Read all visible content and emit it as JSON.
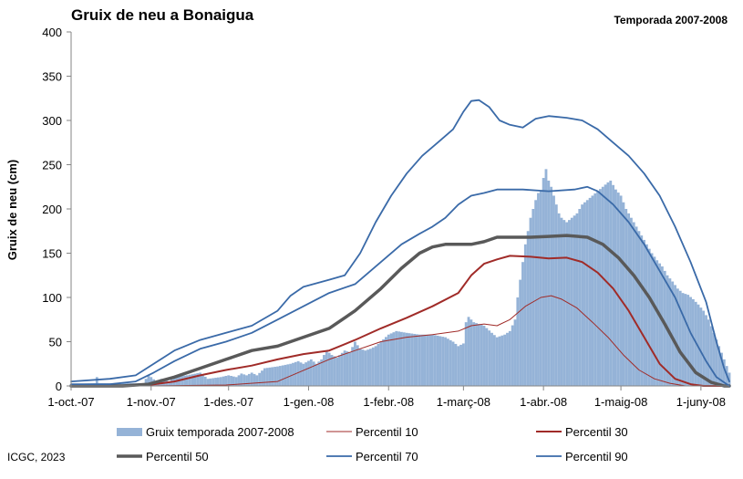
{
  "chart_data": {
    "type": "area",
    "title": "Gruix de neu a Bonaigua",
    "subtitle": "Temporada 2007-2008",
    "ylabel": "Gruix de neu (cm)",
    "xlabel": "",
    "ylim": [
      0,
      400
    ],
    "yticks": [
      "0",
      "50",
      "100",
      "150",
      "200",
      "250",
      "300",
      "350",
      "400"
    ],
    "xlim": [
      0,
      255
    ],
    "xticks": [
      {
        "label": "1-oct.-07",
        "day": 0
      },
      {
        "label": "1-nov.-07",
        "day": 31
      },
      {
        "label": "1-des.-07",
        "day": 61
      },
      {
        "label": "1-gen.-08",
        "day": 92
      },
      {
        "label": "1-febr.-08",
        "day": 123
      },
      {
        "label": "1-març-08",
        "day": 152
      },
      {
        "label": "1-abr.-08",
        "day": 183
      },
      {
        "label": "1-maig-08",
        "day": 213
      },
      {
        "label": "1-juny-08",
        "day": 244
      }
    ],
    "grid": false,
    "legend_position": "bottom",
    "series": [
      {
        "name": "Gruix temporada 2007-2008",
        "kind": "bar",
        "color": "#95b3d7",
        "points": [
          [
            0,
            2
          ],
          [
            9,
            3
          ],
          [
            10,
            10
          ],
          [
            11,
            3
          ],
          [
            20,
            3
          ],
          [
            28,
            3
          ],
          [
            29,
            8
          ],
          [
            30,
            12
          ],
          [
            31,
            10
          ],
          [
            33,
            5
          ],
          [
            35,
            8
          ],
          [
            38,
            5
          ],
          [
            40,
            10
          ],
          [
            45,
            12
          ],
          [
            50,
            15
          ],
          [
            53,
            8
          ],
          [
            58,
            10
          ],
          [
            61,
            12
          ],
          [
            64,
            10
          ],
          [
            66,
            14
          ],
          [
            68,
            12
          ],
          [
            70,
            15
          ],
          [
            72,
            12
          ],
          [
            75,
            20
          ],
          [
            80,
            22
          ],
          [
            85,
            25
          ],
          [
            88,
            28
          ],
          [
            90,
            25
          ],
          [
            93,
            30
          ],
          [
            95,
            25
          ],
          [
            97,
            30
          ],
          [
            99,
            40
          ],
          [
            101,
            35
          ],
          [
            103,
            32
          ],
          [
            106,
            40
          ],
          [
            108,
            38
          ],
          [
            110,
            50
          ],
          [
            112,
            42
          ],
          [
            114,
            40
          ],
          [
            116,
            42
          ],
          [
            118,
            45
          ],
          [
            120,
            50
          ],
          [
            123,
            58
          ],
          [
            126,
            62
          ],
          [
            130,
            60
          ],
          [
            135,
            58
          ],
          [
            140,
            58
          ],
          [
            145,
            55
          ],
          [
            148,
            50
          ],
          [
            150,
            45
          ],
          [
            152,
            48
          ],
          [
            153,
            72
          ],
          [
            154,
            78
          ],
          [
            156,
            72
          ],
          [
            158,
            70
          ],
          [
            160,
            68
          ],
          [
            163,
            60
          ],
          [
            165,
            55
          ],
          [
            168,
            58
          ],
          [
            170,
            62
          ],
          [
            172,
            75
          ],
          [
            173,
            100
          ],
          [
            174,
            120
          ],
          [
            175,
            140
          ],
          [
            176,
            160
          ],
          [
            177,
            175
          ],
          [
            178,
            190
          ],
          [
            179,
            200
          ],
          [
            180,
            210
          ],
          [
            181,
            218
          ],
          [
            182,
            220
          ],
          [
            183,
            235
          ],
          [
            184,
            245
          ],
          [
            185,
            232
          ],
          [
            186,
            225
          ],
          [
            187,
            215
          ],
          [
            188,
            205
          ],
          [
            189,
            195
          ],
          [
            190,
            190
          ],
          [
            192,
            185
          ],
          [
            194,
            190
          ],
          [
            196,
            195
          ],
          [
            198,
            205
          ],
          [
            200,
            210
          ],
          [
            202,
            215
          ],
          [
            204,
            220
          ],
          [
            206,
            225
          ],
          [
            208,
            230
          ],
          [
            209,
            232
          ],
          [
            211,
            222
          ],
          [
            213,
            215
          ],
          [
            215,
            200
          ],
          [
            217,
            190
          ],
          [
            219,
            180
          ],
          [
            221,
            170
          ],
          [
            223,
            160
          ],
          [
            225,
            150
          ],
          [
            227,
            142
          ],
          [
            229,
            135
          ],
          [
            231,
            125
          ],
          [
            233,
            118
          ],
          [
            235,
            110
          ],
          [
            237,
            105
          ],
          [
            239,
            103
          ],
          [
            241,
            98
          ],
          [
            243,
            92
          ],
          [
            245,
            85
          ],
          [
            247,
            75
          ],
          [
            249,
            60
          ],
          [
            251,
            45
          ],
          [
            253,
            30
          ],
          [
            255,
            15
          ]
        ]
      },
      {
        "name": "Percentil 10",
        "kind": "line",
        "color": "#a02b28",
        "width": 1,
        "points": [
          [
            0,
            0
          ],
          [
            30,
            0
          ],
          [
            60,
            1
          ],
          [
            80,
            5
          ],
          [
            92,
            20
          ],
          [
            100,
            30
          ],
          [
            110,
            40
          ],
          [
            120,
            50
          ],
          [
            130,
            55
          ],
          [
            140,
            58
          ],
          [
            150,
            62
          ],
          [
            155,
            68
          ],
          [
            160,
            70
          ],
          [
            165,
            68
          ],
          [
            170,
            75
          ],
          [
            176,
            90
          ],
          [
            182,
            100
          ],
          [
            186,
            102
          ],
          [
            190,
            98
          ],
          [
            196,
            88
          ],
          [
            202,
            72
          ],
          [
            208,
            55
          ],
          [
            214,
            35
          ],
          [
            220,
            18
          ],
          [
            226,
            8
          ],
          [
            232,
            3
          ],
          [
            238,
            0
          ],
          [
            255,
            0
          ]
        ]
      },
      {
        "name": "Percentil 30",
        "kind": "line",
        "color": "#a02b28",
        "width": 2,
        "points": [
          [
            0,
            0
          ],
          [
            20,
            0
          ],
          [
            30,
            1
          ],
          [
            40,
            5
          ],
          [
            50,
            12
          ],
          [
            60,
            18
          ],
          [
            70,
            23
          ],
          [
            80,
            30
          ],
          [
            90,
            36
          ],
          [
            100,
            40
          ],
          [
            110,
            52
          ],
          [
            120,
            65
          ],
          [
            130,
            77
          ],
          [
            140,
            90
          ],
          [
            150,
            105
          ],
          [
            155,
            125
          ],
          [
            160,
            138
          ],
          [
            165,
            143
          ],
          [
            170,
            147
          ],
          [
            178,
            146
          ],
          [
            185,
            144
          ],
          [
            192,
            145
          ],
          [
            198,
            140
          ],
          [
            204,
            128
          ],
          [
            210,
            110
          ],
          [
            216,
            85
          ],
          [
            222,
            55
          ],
          [
            228,
            25
          ],
          [
            234,
            8
          ],
          [
            240,
            2
          ],
          [
            245,
            0
          ],
          [
            255,
            0
          ]
        ]
      },
      {
        "name": "Percentil 50",
        "kind": "line",
        "color": "#595959",
        "width": 3.5,
        "points": [
          [
            0,
            0
          ],
          [
            20,
            0
          ],
          [
            30,
            2
          ],
          [
            40,
            10
          ],
          [
            50,
            20
          ],
          [
            60,
            30
          ],
          [
            70,
            40
          ],
          [
            80,
            45
          ],
          [
            90,
            55
          ],
          [
            100,
            65
          ],
          [
            110,
            85
          ],
          [
            120,
            110
          ],
          [
            128,
            133
          ],
          [
            135,
            150
          ],
          [
            140,
            157
          ],
          [
            145,
            160
          ],
          [
            150,
            160
          ],
          [
            155,
            160
          ],
          [
            160,
            163
          ],
          [
            165,
            168
          ],
          [
            170,
            168
          ],
          [
            178,
            168
          ],
          [
            185,
            169
          ],
          [
            192,
            170
          ],
          [
            200,
            168
          ],
          [
            206,
            160
          ],
          [
            212,
            145
          ],
          [
            218,
            125
          ],
          [
            224,
            100
          ],
          [
            230,
            70
          ],
          [
            236,
            38
          ],
          [
            242,
            15
          ],
          [
            248,
            4
          ],
          [
            253,
            0
          ],
          [
            255,
            0
          ]
        ]
      },
      {
        "name": "Percentil 70",
        "kind": "line",
        "color": "#3a6aa8",
        "width": 1.8,
        "points": [
          [
            0,
            2
          ],
          [
            15,
            2
          ],
          [
            25,
            5
          ],
          [
            32,
            15
          ],
          [
            40,
            28
          ],
          [
            50,
            42
          ],
          [
            60,
            50
          ],
          [
            70,
            60
          ],
          [
            80,
            75
          ],
          [
            90,
            90
          ],
          [
            100,
            105
          ],
          [
            110,
            115
          ],
          [
            120,
            140
          ],
          [
            128,
            160
          ],
          [
            135,
            172
          ],
          [
            140,
            180
          ],
          [
            145,
            190
          ],
          [
            150,
            205
          ],
          [
            155,
            215
          ],
          [
            160,
            218
          ],
          [
            165,
            222
          ],
          [
            175,
            222
          ],
          [
            185,
            220
          ],
          [
            195,
            222
          ],
          [
            200,
            225
          ],
          [
            204,
            220
          ],
          [
            210,
            205
          ],
          [
            216,
            185
          ],
          [
            222,
            160
          ],
          [
            228,
            130
          ],
          [
            234,
            100
          ],
          [
            240,
            60
          ],
          [
            246,
            28
          ],
          [
            250,
            10
          ],
          [
            254,
            2
          ],
          [
            255,
            0
          ]
        ]
      },
      {
        "name": "Percentil 90",
        "kind": "line",
        "color": "#3a6aa8",
        "width": 1.8,
        "points": [
          [
            0,
            5
          ],
          [
            15,
            8
          ],
          [
            25,
            12
          ],
          [
            32,
            25
          ],
          [
            40,
            40
          ],
          [
            50,
            52
          ],
          [
            60,
            60
          ],
          [
            70,
            68
          ],
          [
            80,
            85
          ],
          [
            85,
            102
          ],
          [
            90,
            112
          ],
          [
            100,
            120
          ],
          [
            106,
            125
          ],
          [
            112,
            150
          ],
          [
            118,
            185
          ],
          [
            124,
            215
          ],
          [
            130,
            240
          ],
          [
            136,
            260
          ],
          [
            142,
            275
          ],
          [
            148,
            290
          ],
          [
            152,
            310
          ],
          [
            155,
            322
          ],
          [
            158,
            323
          ],
          [
            162,
            315
          ],
          [
            166,
            300
          ],
          [
            170,
            295
          ],
          [
            175,
            292
          ],
          [
            180,
            302
          ],
          [
            185,
            305
          ],
          [
            192,
            303
          ],
          [
            198,
            300
          ],
          [
            204,
            290
          ],
          [
            210,
            275
          ],
          [
            216,
            260
          ],
          [
            222,
            240
          ],
          [
            228,
            215
          ],
          [
            234,
            180
          ],
          [
            240,
            140
          ],
          [
            246,
            95
          ],
          [
            250,
            50
          ],
          [
            253,
            20
          ],
          [
            255,
            5
          ]
        ]
      }
    ]
  },
  "footer": {
    "credit": "ICGC, 2023"
  }
}
